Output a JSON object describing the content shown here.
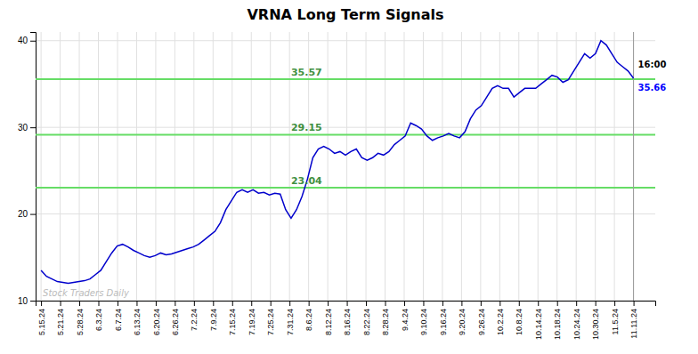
{
  "chart_data": {
    "type": "line",
    "title": "VRNA Long Term Signals",
    "color": "#0000cc",
    "x": [
      0,
      1,
      2,
      3,
      4,
      5,
      6,
      7,
      8,
      9,
      10,
      11,
      12,
      13,
      14,
      15,
      16,
      17,
      18,
      19,
      20,
      21,
      22,
      23,
      24,
      25,
      26,
      27,
      28,
      29,
      30,
      31,
      32,
      33,
      34,
      35,
      36,
      37,
      38,
      39,
      40,
      41,
      42,
      43,
      44,
      45,
      46,
      47,
      48,
      49,
      50,
      51,
      52,
      53,
      54,
      55,
      56,
      57,
      58,
      59,
      60,
      61,
      62,
      63,
      64,
      65,
      66,
      67,
      68,
      69,
      70,
      71,
      72,
      73,
      74,
      75,
      76,
      77,
      78,
      79,
      80,
      81,
      82,
      83,
      84,
      85,
      86,
      87,
      88,
      89,
      90,
      91,
      92,
      93,
      94,
      95,
      96,
      97,
      98,
      99,
      100,
      101,
      102,
      103,
      104,
      105,
      106,
      107,
      108,
      109
    ],
    "values": [
      13.5,
      12.8,
      12.5,
      12.2,
      12.1,
      12.0,
      12.1,
      12.2,
      12.3,
      12.5,
      13.0,
      13.5,
      14.5,
      15.5,
      16.3,
      16.5,
      16.2,
      15.8,
      15.5,
      15.2,
      15.0,
      15.2,
      15.5,
      15.3,
      15.4,
      15.6,
      15.8,
      16.0,
      16.2,
      16.5,
      17.0,
      17.5,
      18.0,
      19.0,
      20.5,
      21.5,
      22.5,
      22.8,
      22.5,
      22.8,
      22.4,
      22.5,
      22.2,
      22.4,
      22.3,
      20.5,
      19.5,
      20.5,
      22.0,
      24.0,
      26.5,
      27.5,
      27.8,
      27.5,
      27.0,
      27.2,
      26.8,
      27.2,
      27.5,
      26.5,
      26.2,
      26.5,
      27.0,
      26.8,
      27.2,
      28.0,
      28.5,
      29.0,
      30.5,
      30.2,
      29.8,
      29.0,
      28.5,
      28.8,
      29.0,
      29.3,
      29.0,
      28.8,
      29.5,
      31.0,
      32.0,
      32.5,
      33.5,
      34.5,
      34.8,
      34.5,
      34.5,
      33.5,
      34.0,
      34.5,
      34.5,
      34.5,
      35.0,
      35.5,
      36.0,
      35.8,
      35.2,
      35.5,
      36.5,
      37.5,
      38.5,
      38.0,
      38.5,
      40.0,
      39.5,
      38.5,
      37.5,
      37.0,
      36.5,
      35.66
    ],
    "xlim": [
      -1,
      113
    ],
    "xticks": [
      {
        "value": 0,
        "label": "5.15.24"
      },
      {
        "value": 3.516129,
        "label": "5.21.24"
      },
      {
        "value": 7.032258,
        "label": "5.28.24"
      },
      {
        "value": 10.548387,
        "label": "6.3.24"
      },
      {
        "value": 14.064516,
        "label": "6.7.24"
      },
      {
        "value": 17.580645,
        "label": "6.13.24"
      },
      {
        "value": 21.096774,
        "label": "6.20.24"
      },
      {
        "value": 24.612903,
        "label": "6.26.24"
      },
      {
        "value": 28.129032,
        "label": "7.2.24"
      },
      {
        "value": 31.645161,
        "label": "7.9.24"
      },
      {
        "value": 35.16129,
        "label": "7.15.24"
      },
      {
        "value": 38.677419,
        "label": "7.19.24"
      },
      {
        "value": 42.193548,
        "label": "7.25.24"
      },
      {
        "value": 45.709677,
        "label": "7.31.24"
      },
      {
        "value": 49.225806,
        "label": "8.6.24"
      },
      {
        "value": 52.741935,
        "label": "8.12.24"
      },
      {
        "value": 56.258065,
        "label": "8.16.24"
      },
      {
        "value": 59.774194,
        "label": "8.22.24"
      },
      {
        "value": 63.290323,
        "label": "8.28.24"
      },
      {
        "value": 66.806452,
        "label": "9.4.24"
      },
      {
        "value": 70.322581,
        "label": "9.10.24"
      },
      {
        "value": 73.83871,
        "label": "9.16.24"
      },
      {
        "value": 77.354839,
        "label": "9.20.24"
      },
      {
        "value": 80.870968,
        "label": "9.26.24"
      },
      {
        "value": 84.387097,
        "label": "10.2.24"
      },
      {
        "value": 87.903226,
        "label": "10.8.24"
      },
      {
        "value": 91.419355,
        "label": "10.14.24"
      },
      {
        "value": 94.935484,
        "label": "10.18.24"
      },
      {
        "value": 98.451613,
        "label": "10.24.24"
      },
      {
        "value": 101.967742,
        "label": "10.30.24"
      },
      {
        "value": 105.483871,
        "label": "11.5.24"
      },
      {
        "value": 109,
        "label": "11.11.24"
      }
    ],
    "ylim": [
      10,
      41
    ],
    "yticks": [
      10,
      20,
      30,
      40
    ],
    "grid": true,
    "hlines": [
      {
        "value": 23.04,
        "label": "23.04",
        "color": "#66dd66"
      },
      {
        "value": 29.15,
        "label": "29.15",
        "color": "#66dd66"
      },
      {
        "value": 35.57,
        "label": "35.57",
        "color": "#66dd66"
      }
    ],
    "annotations": [
      {
        "text": "16:00",
        "color": "#000000"
      },
      {
        "text": "35.66",
        "color": "#0000ff"
      }
    ],
    "watermark": "Stock Traders Daily"
  }
}
